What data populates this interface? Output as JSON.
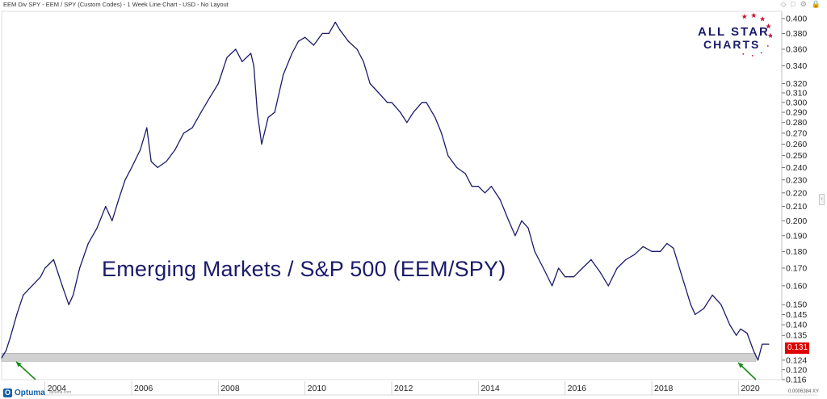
{
  "header": {
    "title": "EEM Div SPY - EEM / SPY (Custom Codes) - 1 Week Line Chart - USD - No Layout"
  },
  "toolbar": {
    "icons": [
      "diamond-icon",
      "square-icon",
      "gear-icon",
      "lock-icon"
    ],
    "lock_glyph": "🔒",
    "handle_glyph": "‹"
  },
  "logo": {
    "line1": "ALL STAR",
    "line2": "CHARTS",
    "text_color": "#1b1b6b",
    "star_color": "#c8102e"
  },
  "brand": {
    "mark": "O",
    "name": "Optuma",
    "url": "optuma.com"
  },
  "scale_readout": "0.0006384 XY",
  "colors": {
    "line": "#1b1b6b",
    "band": "#d0d0d0",
    "arrow": "#1a8a1a",
    "badge": "#e00000",
    "axis_text": "#222222"
  },
  "chart_data": {
    "type": "line",
    "title": "Emerging Markets / S&P 500 (EEM/SPY)",
    "xlabel": "",
    "ylabel": "",
    "scale": "log",
    "ylim": [
      0.116,
      0.41
    ],
    "xlim": [
      2003.0,
      2021.0
    ],
    "x_ticks": [
      "2004",
      "2006",
      "2008",
      "2010",
      "2012",
      "2014",
      "2016",
      "2018",
      "2020"
    ],
    "y_ticks": [
      "0.400",
      "0.380",
      "0.360",
      "0.340",
      "0.320",
      "0.310",
      "0.300",
      "0.290",
      "0.280",
      "0.270",
      "0.260",
      "0.250",
      "0.240",
      "0.230",
      "0.220",
      "0.210",
      "0.200",
      "0.190",
      "0.180",
      "0.170",
      "0.160",
      "0.150",
      "0.145",
      "0.140",
      "0.135",
      "0.124",
      "0.120",
      "0.116"
    ],
    "last_value": "0.131",
    "support_band": [
      0.1235,
      0.127
    ],
    "series": [
      {
        "name": "",
        "x": [
          2003.0,
          2003.1,
          2003.2,
          2003.35,
          2003.5,
          2003.7,
          2003.9,
          2004.0,
          2004.2,
          2004.4,
          2004.55,
          2004.65,
          2004.8,
          2005.0,
          2005.2,
          2005.4,
          2005.55,
          2005.7,
          2005.85,
          2006.0,
          2006.2,
          2006.35,
          2006.45,
          2006.6,
          2006.8,
          2007.0,
          2007.2,
          2007.4,
          2007.6,
          2007.8,
          2008.0,
          2008.2,
          2008.4,
          2008.55,
          2008.75,
          2008.82,
          2008.9,
          2009.0,
          2009.15,
          2009.3,
          2009.5,
          2009.7,
          2009.85,
          2010.0,
          2010.2,
          2010.4,
          2010.55,
          2010.7,
          2010.8,
          2011.0,
          2011.2,
          2011.35,
          2011.5,
          2011.7,
          2011.9,
          2012.0,
          2012.2,
          2012.35,
          2012.5,
          2012.7,
          2012.8,
          2013.0,
          2013.15,
          2013.3,
          2013.5,
          2013.7,
          2013.85,
          2014.0,
          2014.15,
          2014.3,
          2014.5,
          2014.7,
          2014.85,
          2015.0,
          2015.15,
          2015.3,
          2015.5,
          2015.7,
          2015.85,
          2016.0,
          2016.2,
          2016.4,
          2016.6,
          2016.8,
          2017.0,
          2017.2,
          2017.4,
          2017.6,
          2017.8,
          2018.0,
          2018.2,
          2018.35,
          2018.5,
          2018.7,
          2018.9,
          2019.0,
          2019.2,
          2019.4,
          2019.6,
          2019.8,
          2019.95,
          2020.05,
          2020.2,
          2020.35,
          2020.45,
          2020.55,
          2020.7
        ],
        "values": [
          0.125,
          0.128,
          0.134,
          0.145,
          0.155,
          0.16,
          0.165,
          0.17,
          0.175,
          0.16,
          0.15,
          0.155,
          0.17,
          0.185,
          0.195,
          0.21,
          0.2,
          0.215,
          0.23,
          0.24,
          0.255,
          0.275,
          0.245,
          0.24,
          0.245,
          0.255,
          0.27,
          0.275,
          0.29,
          0.305,
          0.32,
          0.35,
          0.36,
          0.345,
          0.355,
          0.34,
          0.29,
          0.26,
          0.285,
          0.29,
          0.33,
          0.355,
          0.37,
          0.375,
          0.365,
          0.38,
          0.38,
          0.395,
          0.385,
          0.37,
          0.36,
          0.345,
          0.32,
          0.31,
          0.3,
          0.3,
          0.29,
          0.28,
          0.29,
          0.3,
          0.3,
          0.285,
          0.27,
          0.25,
          0.24,
          0.235,
          0.225,
          0.225,
          0.22,
          0.225,
          0.215,
          0.2,
          0.19,
          0.2,
          0.195,
          0.18,
          0.17,
          0.16,
          0.17,
          0.165,
          0.165,
          0.17,
          0.175,
          0.168,
          0.16,
          0.17,
          0.175,
          0.178,
          0.183,
          0.18,
          0.18,
          0.185,
          0.182,
          0.165,
          0.15,
          0.145,
          0.148,
          0.155,
          0.15,
          0.14,
          0.135,
          0.138,
          0.136,
          0.128,
          0.124,
          0.131,
          0.131
        ]
      }
    ]
  }
}
